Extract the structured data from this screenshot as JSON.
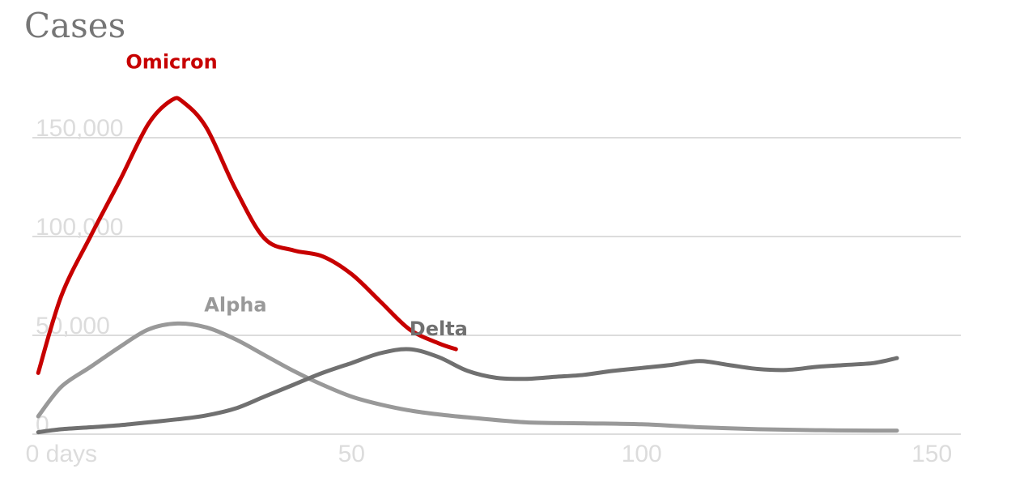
{
  "chart_data": {
    "type": "line",
    "title": "Cases",
    "xlabel": "",
    "ylabel": "",
    "x_unit_label": "days",
    "xlim": [
      -5,
      155
    ],
    "ylim": [
      0,
      165000
    ],
    "x_ticks": [
      {
        "value": 0,
        "label": "0 days"
      },
      {
        "value": 50,
        "label": "50"
      },
      {
        "value": 100,
        "label": "100"
      },
      {
        "value": 150,
        "label": "150"
      }
    ],
    "y_ticks": [
      {
        "value": 0,
        "label": "0"
      },
      {
        "value": 50000,
        "label": "50,000"
      },
      {
        "value": 100000,
        "label": "100,000"
      },
      {
        "value": 150000,
        "label": "150,000"
      }
    ],
    "grid": true,
    "series": [
      {
        "name": "Omicron",
        "color": "#c70000",
        "x": [
          -4,
          0,
          5,
          10,
          15,
          19,
          21,
          25,
          30,
          35,
          40,
          45,
          50,
          55,
          60,
          65,
          68
        ],
        "y": [
          31000,
          70000,
          100000,
          128000,
          157000,
          169000,
          168000,
          155000,
          124000,
          99000,
          93000,
          90000,
          81000,
          67000,
          53000,
          46000,
          43000
        ]
      },
      {
        "name": "Alpha",
        "color": "#999999",
        "x": [
          -4,
          0,
          5,
          10,
          15,
          20,
          25,
          30,
          35,
          40,
          45,
          50,
          55,
          60,
          65,
          70,
          80,
          90,
          100,
          110,
          120,
          130,
          140,
          144
        ],
        "y": [
          9000,
          24000,
          34000,
          44000,
          53000,
          56000,
          54000,
          48000,
          40000,
          32000,
          25000,
          19000,
          15000,
          12000,
          10000,
          8500,
          6000,
          5500,
          5000,
          3500,
          2500,
          2000,
          1800,
          1800
        ]
      },
      {
        "name": "Delta",
        "color": "#707070",
        "x": [
          -4,
          0,
          5,
          10,
          15,
          20,
          25,
          30,
          35,
          40,
          45,
          50,
          55,
          60,
          65,
          70,
          75,
          80,
          85,
          90,
          95,
          100,
          105,
          110,
          115,
          120,
          125,
          130,
          135,
          140,
          144
        ],
        "y": [
          1000,
          2500,
          3500,
          4500,
          6000,
          7500,
          9500,
          13000,
          19000,
          25000,
          31000,
          36000,
          41000,
          43000,
          39000,
          32000,
          28500,
          28000,
          29000,
          30000,
          32000,
          33500,
          35000,
          37000,
          35000,
          33000,
          32500,
          34000,
          35000,
          36000,
          38500
        ]
      }
    ],
    "annotations": [
      {
        "text": "Omicron",
        "series": "Omicron",
        "x": 19,
        "y": 185000
      },
      {
        "text": "Alpha",
        "series": "Alpha",
        "x": 30,
        "y": 62000
      },
      {
        "text": "Delta",
        "series": "Delta",
        "x": 65,
        "y": 50000
      }
    ]
  }
}
